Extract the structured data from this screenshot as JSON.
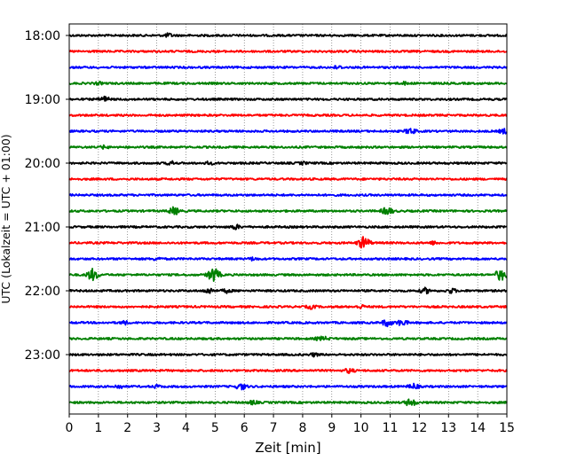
{
  "chart_data": {
    "type": "line",
    "title": "",
    "xlabel": "Zeit  [min]",
    "ylabel": "UTC (Lokalzeit = UTC + 01:00)",
    "xlim": [
      0,
      15
    ],
    "x_ticks": [
      "0",
      "1",
      "2",
      "3",
      "4",
      "5",
      "6",
      "7",
      "8",
      "9",
      "10",
      "11",
      "12",
      "13",
      "14",
      "15"
    ],
    "y_ticks": [
      "18:00",
      "19:00",
      "20:00",
      "21:00",
      "22:00",
      "23:00"
    ],
    "grid": "vertical dotted lines at each minute",
    "trace_interval_minutes": 15,
    "traces_start": "18:00",
    "color_cycle": [
      "#000000",
      "#ff0000",
      "#0000ff",
      "#008000"
    ],
    "traces": [
      {
        "start": "18:00",
        "color": "#000000",
        "events": [
          {
            "t": 3.4,
            "amp": 1.4
          }
        ]
      },
      {
        "start": "18:15",
        "color": "#ff0000",
        "events": []
      },
      {
        "start": "18:30",
        "color": "#0000ff",
        "events": [
          {
            "t": 9.2,
            "amp": 1.3
          }
        ]
      },
      {
        "start": "18:45",
        "color": "#008000",
        "events": [
          {
            "t": 1.0,
            "amp": 1.1
          },
          {
            "t": 11.5,
            "amp": 1.1
          }
        ]
      },
      {
        "start": "19:00",
        "color": "#000000",
        "events": [
          {
            "t": 1.2,
            "amp": 1.8
          }
        ]
      },
      {
        "start": "19:15",
        "color": "#ff0000",
        "events": []
      },
      {
        "start": "19:30",
        "color": "#0000ff",
        "events": [
          {
            "t": 11.7,
            "amp": 2.0
          },
          {
            "t": 14.9,
            "amp": 1.6
          }
        ]
      },
      {
        "start": "19:45",
        "color": "#008000",
        "events": [
          {
            "t": 1.2,
            "amp": 1.2
          }
        ]
      },
      {
        "start": "20:00",
        "color": "#000000",
        "events": [
          {
            "t": 3.5,
            "amp": 1.4
          },
          {
            "t": 4.8,
            "amp": 1.2
          },
          {
            "t": 8.0,
            "amp": 1.1
          }
        ]
      },
      {
        "start": "20:15",
        "color": "#ff0000",
        "events": []
      },
      {
        "start": "20:30",
        "color": "#0000ff",
        "events": []
      },
      {
        "start": "20:45",
        "color": "#008000",
        "events": [
          {
            "t": 3.6,
            "amp": 2.4
          },
          {
            "t": 10.9,
            "amp": 2.4
          }
        ]
      },
      {
        "start": "21:00",
        "color": "#000000",
        "events": [
          {
            "t": 5.7,
            "amp": 1.6
          }
        ]
      },
      {
        "start": "21:15",
        "color": "#ff0000",
        "events": [
          {
            "t": 10.1,
            "amp": 3.6
          },
          {
            "t": 12.5,
            "amp": 1.2
          }
        ]
      },
      {
        "start": "21:30",
        "color": "#0000ff",
        "events": [
          {
            "t": 3.0,
            "amp": 1.2
          },
          {
            "t": 6.3,
            "amp": 1.2
          }
        ]
      },
      {
        "start": "21:45",
        "color": "#008000",
        "events": [
          {
            "t": 0.8,
            "amp": 3.4
          },
          {
            "t": 4.95,
            "amp": 4.0
          },
          {
            "t": 14.8,
            "amp": 3.4
          }
        ]
      },
      {
        "start": "22:00",
        "color": "#000000",
        "events": [
          {
            "t": 4.8,
            "amp": 1.8
          },
          {
            "t": 5.4,
            "amp": 1.4
          },
          {
            "t": 12.2,
            "amp": 1.8
          },
          {
            "t": 13.1,
            "amp": 1.6
          }
        ]
      },
      {
        "start": "22:15",
        "color": "#ff0000",
        "events": [
          {
            "t": 8.3,
            "amp": 1.4
          },
          {
            "t": 10.0,
            "amp": 1.3
          }
        ]
      },
      {
        "start": "22:30",
        "color": "#0000ff",
        "events": [
          {
            "t": 1.9,
            "amp": 1.3
          },
          {
            "t": 10.9,
            "amp": 2.2
          },
          {
            "t": 11.4,
            "amp": 2.0
          }
        ]
      },
      {
        "start": "22:45",
        "color": "#008000",
        "events": [
          {
            "t": 8.6,
            "amp": 1.4
          },
          {
            "t": 8.8,
            "amp": 1.2
          }
        ]
      },
      {
        "start": "23:00",
        "color": "#000000",
        "events": [
          {
            "t": 8.4,
            "amp": 1.3
          }
        ]
      },
      {
        "start": "23:15",
        "color": "#ff0000",
        "events": [
          {
            "t": 9.6,
            "amp": 1.6
          }
        ]
      },
      {
        "start": "23:30",
        "color": "#0000ff",
        "events": [
          {
            "t": 1.7,
            "amp": 1.4
          },
          {
            "t": 3.0,
            "amp": 1.2
          },
          {
            "t": 5.9,
            "amp": 2.0
          },
          {
            "t": 11.8,
            "amp": 1.8
          }
        ]
      },
      {
        "start": "23:45",
        "color": "#008000",
        "events": [
          {
            "t": 6.3,
            "amp": 1.4
          },
          {
            "t": 11.7,
            "amp": 2.4
          }
        ]
      }
    ]
  }
}
